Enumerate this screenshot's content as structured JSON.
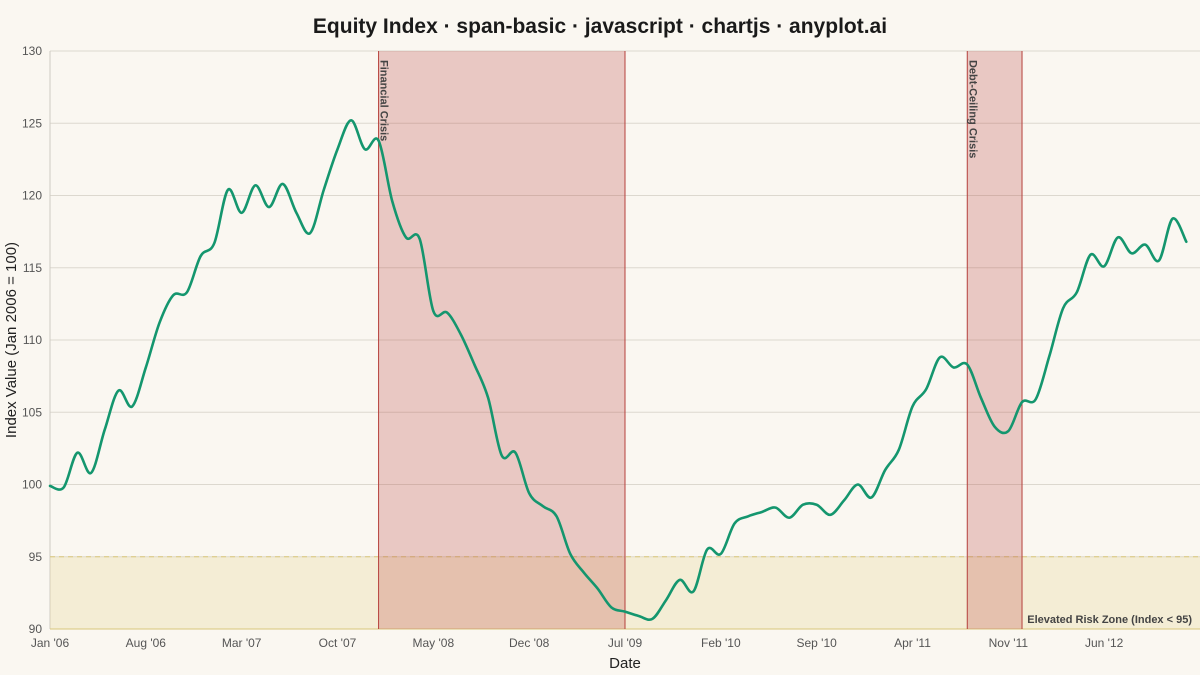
{
  "chart_data": {
    "type": "line",
    "title": "Equity Index · span-basic · javascript · chartjs · anyplot.ai",
    "xlabel": "Date",
    "ylabel": "Index Value (Jan 2006 = 100)",
    "ylim": [
      90,
      130
    ],
    "xlim": [
      "2006-01",
      "2013-01"
    ],
    "yticks": [
      "90",
      "95",
      "100",
      "105",
      "110",
      "115",
      "120",
      "125",
      "130"
    ],
    "xticks": [
      {
        "date": "2006-01",
        "label": "Jan '06"
      },
      {
        "date": "2006-08",
        "label": "Aug '06"
      },
      {
        "date": "2007-03",
        "label": "Mar '07"
      },
      {
        "date": "2007-10",
        "label": "Oct '07"
      },
      {
        "date": "2008-05",
        "label": "May '08"
      },
      {
        "date": "2008-12",
        "label": "Dec '08"
      },
      {
        "date": "2009-07",
        "label": "Jul '09"
      },
      {
        "date": "2010-02",
        "label": "Feb '10"
      },
      {
        "date": "2010-09",
        "label": "Sep '10"
      },
      {
        "date": "2011-04",
        "label": "Apr '11"
      },
      {
        "date": "2011-11",
        "label": "Nov '11"
      },
      {
        "date": "2012-06",
        "label": "Jun '12"
      }
    ],
    "grid": true,
    "series": [
      {
        "color": "#14966e",
        "points": [
          [
            "2006-01",
            99.9
          ],
          [
            "2006-02",
            99.8
          ],
          [
            "2006-03",
            102.2
          ],
          [
            "2006-04",
            100.8
          ],
          [
            "2006-05",
            103.8
          ],
          [
            "2006-06",
            106.5
          ],
          [
            "2006-07",
            105.4
          ],
          [
            "2006-08",
            108.1
          ],
          [
            "2006-09",
            111.2
          ],
          [
            "2006-10",
            113.1
          ],
          [
            "2006-11",
            113.3
          ],
          [
            "2006-12",
            115.8
          ],
          [
            "2007-01",
            116.7
          ],
          [
            "2007-02",
            120.4
          ],
          [
            "2007-03",
            118.8
          ],
          [
            "2007-04",
            120.7
          ],
          [
            "2007-05",
            119.2
          ],
          [
            "2007-06",
            120.8
          ],
          [
            "2007-07",
            118.8
          ],
          [
            "2007-08",
            117.4
          ],
          [
            "2007-09",
            120.4
          ],
          [
            "2007-10",
            123.2
          ],
          [
            "2007-11",
            125.2
          ],
          [
            "2007-12",
            123.2
          ],
          [
            "2008-01",
            123.8
          ],
          [
            "2008-02",
            119.6
          ],
          [
            "2008-03",
            117.1
          ],
          [
            "2008-04",
            117.0
          ],
          [
            "2008-05",
            112.0
          ],
          [
            "2008-06",
            111.9
          ],
          [
            "2008-07",
            110.4
          ],
          [
            "2008-08",
            108.3
          ],
          [
            "2008-09",
            106.0
          ],
          [
            "2008-10",
            102.0
          ],
          [
            "2008-11",
            102.2
          ],
          [
            "2008-12",
            99.4
          ],
          [
            "2009-01",
            98.5
          ],
          [
            "2009-02",
            97.8
          ],
          [
            "2009-03",
            95.2
          ],
          [
            "2009-04",
            93.9
          ],
          [
            "2009-05",
            92.8
          ],
          [
            "2009-06",
            91.5
          ],
          [
            "2009-07",
            91.2
          ],
          [
            "2009-08",
            90.9
          ],
          [
            "2009-09",
            90.7
          ],
          [
            "2009-10",
            92.0
          ],
          [
            "2009-11",
            93.4
          ],
          [
            "2009-12",
            92.6
          ],
          [
            "2010-01",
            95.5
          ],
          [
            "2010-02",
            95.2
          ],
          [
            "2010-03",
            97.3
          ],
          [
            "2010-04",
            97.8
          ],
          [
            "2010-05",
            98.1
          ],
          [
            "2010-06",
            98.4
          ],
          [
            "2010-07",
            97.7
          ],
          [
            "2010-08",
            98.6
          ],
          [
            "2010-09",
            98.6
          ],
          [
            "2010-10",
            97.9
          ],
          [
            "2010-11",
            98.9
          ],
          [
            "2010-12",
            100.0
          ],
          [
            "2011-01",
            99.1
          ],
          [
            "2011-02",
            101.0
          ],
          [
            "2011-03",
            102.4
          ],
          [
            "2011-04",
            105.4
          ],
          [
            "2011-05",
            106.6
          ],
          [
            "2011-06",
            108.8
          ],
          [
            "2011-07",
            108.1
          ],
          [
            "2011-08",
            108.3
          ],
          [
            "2011-09",
            106.0
          ],
          [
            "2011-10",
            104.0
          ],
          [
            "2011-11",
            103.7
          ],
          [
            "2011-12",
            105.7
          ],
          [
            "2012-01",
            105.9
          ],
          [
            "2012-02",
            108.9
          ],
          [
            "2012-03",
            112.2
          ],
          [
            "2012-04",
            113.3
          ],
          [
            "2012-05",
            115.9
          ],
          [
            "2012-06",
            115.1
          ],
          [
            "2012-07",
            117.1
          ],
          [
            "2012-08",
            116.0
          ],
          [
            "2012-09",
            116.6
          ],
          [
            "2012-10",
            115.5
          ],
          [
            "2012-11",
            118.4
          ],
          [
            "2012-12",
            116.8
          ]
        ]
      }
    ],
    "spans": [
      {
        "start": "2008-01",
        "end": "2009-07",
        "label": "Financial Crisis",
        "fill": "#c0504d",
        "opacity": 0.28
      },
      {
        "start": "2011-08",
        "end": "2011-12",
        "label": "Debt-Ceiling Crisis",
        "fill": "#c0504d",
        "opacity": 0.28
      }
    ],
    "band": {
      "y0": 90,
      "y1": 95,
      "label": "Elevated Risk Zone (Index < 95)",
      "fill": "#e8d9a0",
      "opacity": 0.35
    }
  }
}
